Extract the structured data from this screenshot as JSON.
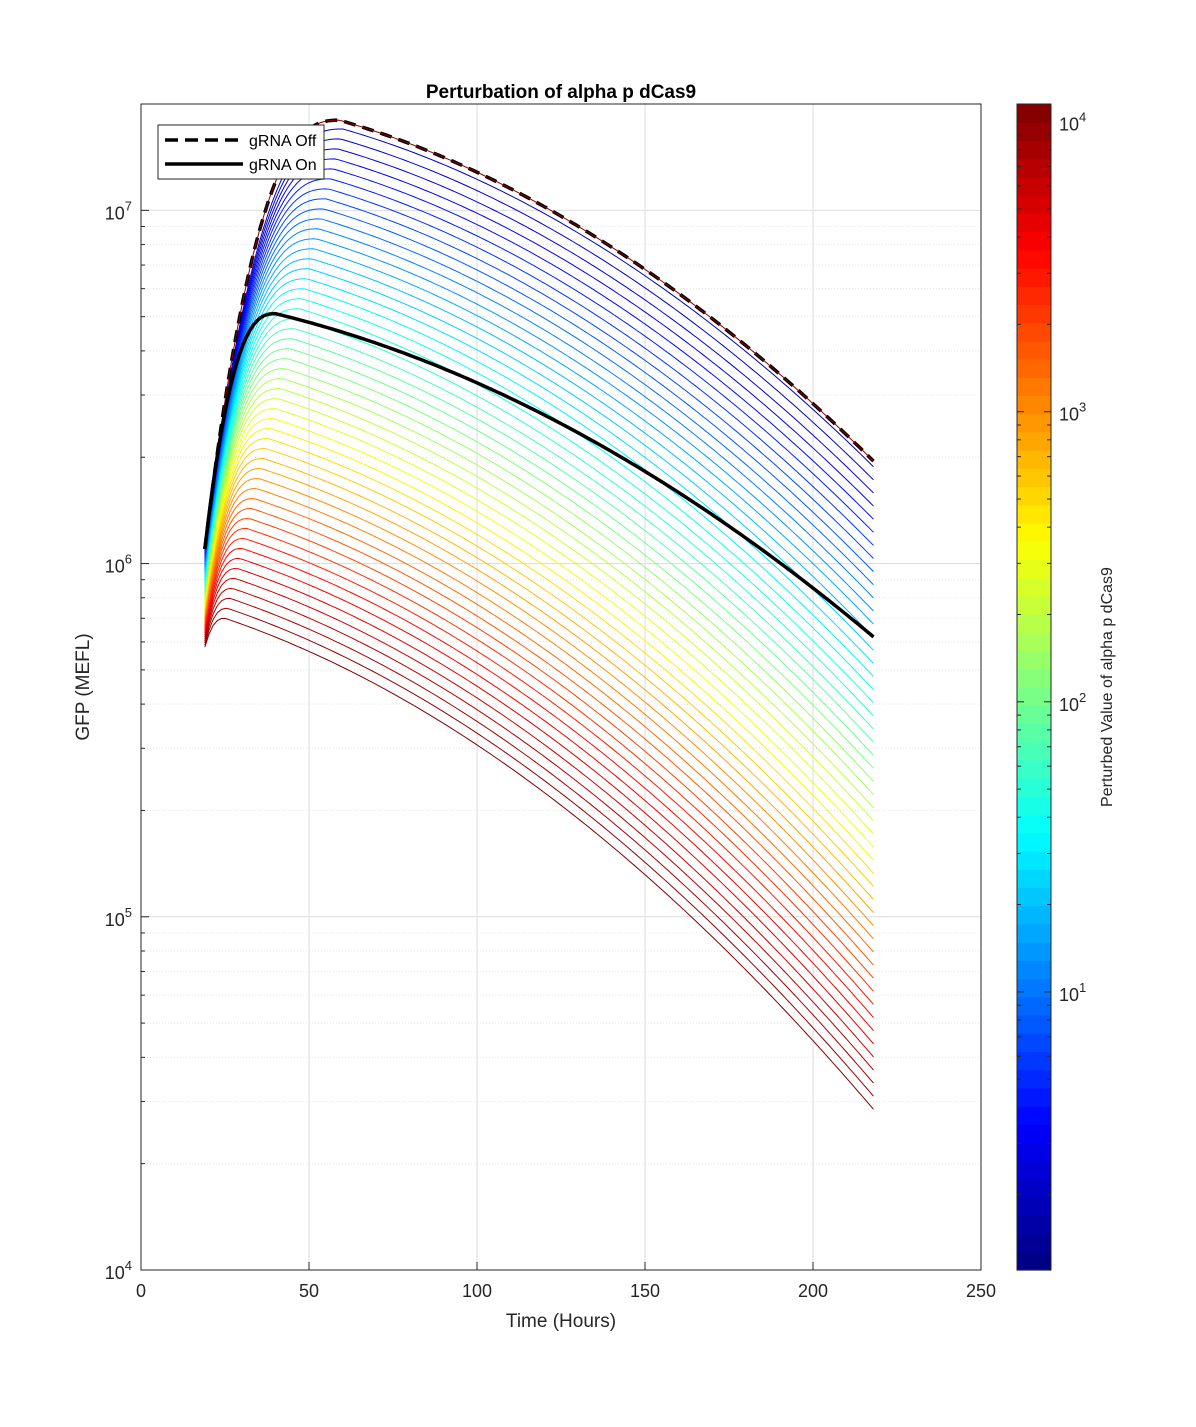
{
  "chart_data": {
    "type": "line",
    "title": "Perturbation of alpha p dCas9",
    "xlabel": "Time (Hours)",
    "ylabel": "GFP (MEFL)",
    "xlim": [
      0,
      250
    ],
    "ylim": [
      10000,
      20000000
    ],
    "yscale": "log",
    "x_ticks": [
      0,
      50,
      100,
      150,
      200,
      250
    ],
    "y_ticks": [
      {
        "base": "10",
        "exp": "4",
        "value": 10000
      },
      {
        "base": "10",
        "exp": "5",
        "value": 100000
      },
      {
        "base": "10",
        "exp": "6",
        "value": 1000000
      },
      {
        "base": "10",
        "exp": "7",
        "value": 10000000
      }
    ],
    "grid": true,
    "legend": {
      "placement": "top-left",
      "entries": [
        {
          "label": "gRNA Off",
          "style": "dashed",
          "color": "#000000"
        },
        {
          "label": "gRNA On",
          "style": "solid",
          "color": "#000000"
        }
      ]
    },
    "time_range": [
      19,
      218
    ],
    "reference_series": [
      {
        "name": "gRNA Off",
        "start": 1100000,
        "peak_time": 59,
        "peak": 18000000,
        "end": 1950000
      },
      {
        "name": "gRNA On",
        "start": 1100000,
        "peak_time": 40,
        "peak": 5100000,
        "end": 620000
      }
    ],
    "perturbation_series": {
      "count": 50,
      "colormap": "jet",
      "top_curve": {
        "start": 1100000,
        "peak_time": 60,
        "peak": 17000000,
        "end": 1880000
      },
      "bottom_curve": {
        "start": 580000,
        "peak_time": 25,
        "peak": 700000,
        "end": 28500
      }
    },
    "colorbar": {
      "label": "Perturbed Value of alpha p dCas9",
      "scale": "log",
      "range": [
        1.1,
        11500
      ],
      "colormap": "jet",
      "levels": 64,
      "ticks": [
        {
          "base": "10",
          "exp": "1",
          "value": 10
        },
        {
          "base": "10",
          "exp": "2",
          "value": 100
        },
        {
          "base": "10",
          "exp": "3",
          "value": 1000
        },
        {
          "base": "10",
          "exp": "4",
          "value": 10000
        }
      ]
    }
  }
}
